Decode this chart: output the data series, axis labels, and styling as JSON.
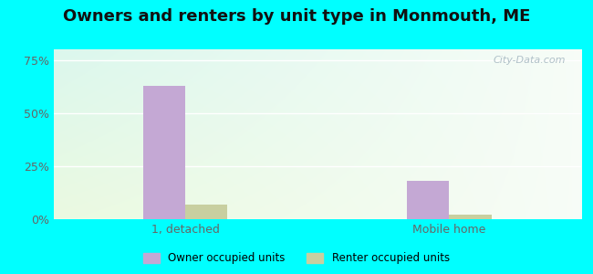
{
  "title": "Owners and renters by unit type in Monmouth, ME",
  "categories": [
    "1, detached",
    "Mobile home"
  ],
  "owner_values": [
    63.0,
    18.0
  ],
  "renter_values": [
    7.0,
    2.0
  ],
  "owner_color": "#c4a8d4",
  "renter_color": "#c8cfa0",
  "yticks": [
    0,
    25,
    50,
    75
  ],
  "ytick_labels": [
    "0%",
    "25%",
    "50%",
    "75%"
  ],
  "ylim": [
    0,
    80
  ],
  "legend_owner": "Owner occupied units",
  "legend_renter": "Renter occupied units",
  "outer_bg": "#00ffff",
  "bar_width": 0.32,
  "title_fontsize": 13,
  "watermark": "City-Data.com"
}
